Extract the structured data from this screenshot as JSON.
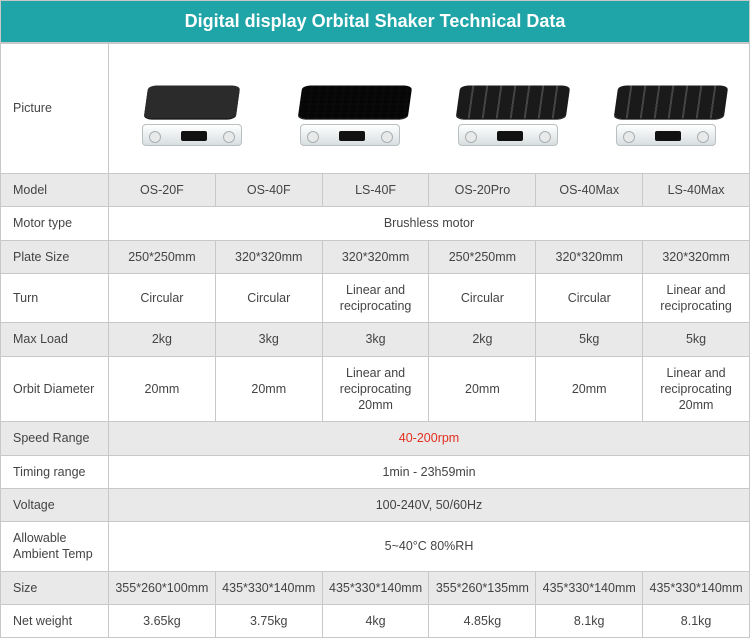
{
  "title": "Digital display Orbital Shaker Technical Data",
  "header_bg": "#1fa4a7",
  "shade_bg": "#e9e9e9",
  "border_color": "#c8c8c8",
  "highlight_color": "#e03020",
  "row_labels": {
    "picture": "Picture",
    "model": "Model",
    "motor": "Motor type",
    "plate": "Plate Size",
    "turn": "Turn",
    "load": "Max Load",
    "orbit": "Orbit Diameter",
    "speed": "Speed Range",
    "timing": "Timing range",
    "voltage": "Voltage",
    "ambient": "Allowable Ambient Temp",
    "size": "Size",
    "weight": "Net weight"
  },
  "models": [
    "OS-20F",
    "OS-40F",
    "LS-40F",
    "OS-20Pro",
    "OS-40Max",
    "LS-40Max"
  ],
  "motor": "Brushless motor",
  "plate_size": [
    "250*250mm",
    "320*320mm",
    "320*320mm",
    "250*250mm",
    "320*320mm",
    "320*320mm"
  ],
  "turn": [
    "Circular",
    "Circular",
    "Linear and reciprocating",
    "Circular",
    "Circular",
    "Linear and reciprocating"
  ],
  "max_load": [
    "2kg",
    "3kg",
    "3kg",
    "2kg",
    "5kg",
    "5kg"
  ],
  "orbit": [
    "20mm",
    "20mm",
    "Linear and reciprocating 20mm",
    "20mm",
    "20mm",
    "Linear and reciprocating 20mm"
  ],
  "speed": "40-200rpm",
  "timing": "1min - 23h59min",
  "voltage": "100-240V, 50/60Hz",
  "ambient": "5~40°C  80%RH",
  "size": [
    "355*260*100mm",
    "435*330*140mm",
    "435*330*140mm",
    "355*260*135mm",
    "435*330*140mm",
    "435*330*140mm"
  ],
  "weight": [
    "3.65kg",
    "3.75kg",
    "4kg",
    "4.85kg",
    "8.1kg",
    "8.1kg"
  ],
  "pictures": [
    {
      "plate": "plain",
      "wide": false
    },
    {
      "plate": "grid",
      "wide": true
    },
    {
      "plate": "bars",
      "wide": true
    },
    {
      "plate": "bars",
      "wide": true
    }
  ]
}
